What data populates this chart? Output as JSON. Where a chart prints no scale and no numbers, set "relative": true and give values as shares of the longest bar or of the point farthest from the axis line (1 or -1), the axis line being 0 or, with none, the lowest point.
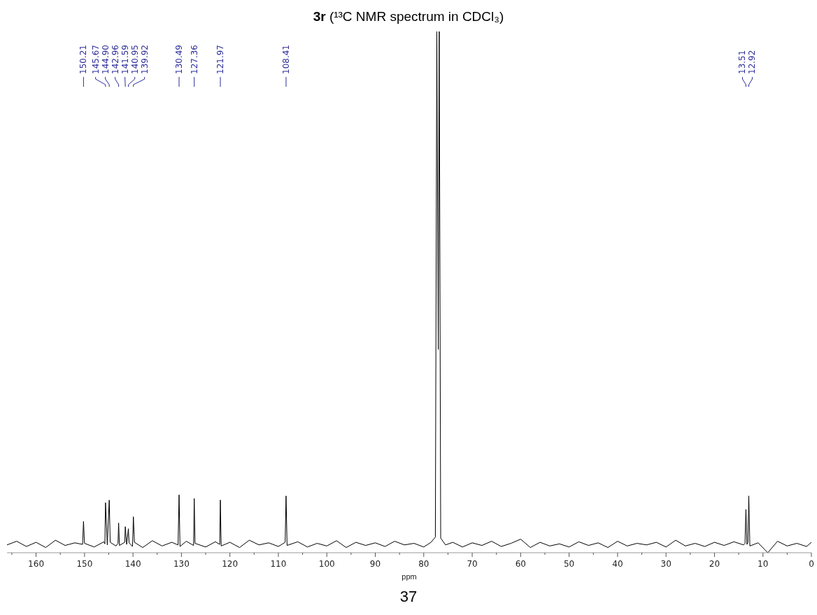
{
  "chart_data": {
    "type": "line",
    "relative": true,
    "title": "3r (¹³C NMR spectrum in CDCl₃)",
    "xlabel": "ppm",
    "marker": "none",
    "xlim": [
      166,
      0
    ],
    "xticks": [
      {
        "value": 165,
        "label": null
      },
      160,
      {
        "value": 155,
        "label": null
      },
      150,
      {
        "value": 145,
        "label": null
      },
      140,
      {
        "value": 135,
        "label": null
      },
      130,
      {
        "value": 125,
        "label": null
      },
      120,
      {
        "value": 115,
        "label": null
      },
      110,
      {
        "value": 105,
        "label": null
      },
      100,
      {
        "value": 95,
        "label": null
      },
      90,
      {
        "value": 85,
        "label": null
      },
      80,
      {
        "value": 75,
        "label": null
      },
      70,
      {
        "value": 65,
        "label": null
      },
      60,
      {
        "value": 55,
        "label": null
      },
      50,
      {
        "value": 45,
        "label": null
      },
      40,
      {
        "value": 35,
        "label": null
      },
      30,
      {
        "value": 25,
        "label": null
      },
      20,
      {
        "value": 15,
        "label": null
      },
      10,
      {
        "value": 5,
        "label": null
      },
      0
    ],
    "series": [
      {
        "color": "#000000",
        "x": [
          166,
          164,
          162,
          160,
          158,
          156,
          154,
          152,
          150.4,
          150.21,
          150.0,
          148,
          146,
          145.8,
          145.67,
          145.3,
          144.9,
          144.7,
          143.5,
          143.1,
          142.96,
          142.8,
          141.7,
          141.59,
          141.3,
          140.95,
          140.8,
          140.1,
          139.92,
          139.7,
          138,
          136,
          134,
          132,
          130.7,
          130.49,
          130.3,
          129,
          127.5,
          127.36,
          127.2,
          125,
          123,
          122.1,
          121.97,
          121.8,
          120,
          118,
          116,
          114,
          112,
          110,
          108.6,
          108.41,
          108.2,
          106,
          104,
          102,
          100,
          98,
          96,
          94,
          92,
          90,
          88,
          86,
          84,
          82,
          80,
          78.5,
          77.6,
          77.3,
          77.0,
          76.8,
          76.5,
          75.5,
          74,
          72,
          70,
          68,
          66,
          64,
          62,
          60,
          58,
          56,
          54,
          52,
          50,
          48,
          46,
          44,
          42,
          40,
          38,
          36,
          34,
          32,
          30,
          28,
          26,
          24,
          22,
          20,
          18,
          16,
          14,
          13.7,
          13.51,
          13.3,
          13.1,
          12.92,
          12.7,
          11,
          9,
          7,
          5,
          3,
          1,
          0
        ],
        "values": [
          0.015,
          0.022,
          0.012,
          0.02,
          0.01,
          0.024,
          0.014,
          0.019,
          0.016,
          0.06,
          0.018,
          0.011,
          0.021,
          0.017,
          0.096,
          0.015,
          0.101,
          0.02,
          0.013,
          0.018,
          0.057,
          0.014,
          0.02,
          0.05,
          0.016,
          0.046,
          0.019,
          0.012,
          0.069,
          0.02,
          0.01,
          0.023,
          0.013,
          0.02,
          0.015,
          0.111,
          0.012,
          0.022,
          0.014,
          0.104,
          0.018,
          0.011,
          0.021,
          0.016,
          0.101,
          0.013,
          0.02,
          0.01,
          0.024,
          0.015,
          0.019,
          0.012,
          0.02,
          0.109,
          0.014,
          0.021,
          0.011,
          0.018,
          0.013,
          0.023,
          0.01,
          0.02,
          0.014,
          0.019,
          0.012,
          0.022,
          0.015,
          0.018,
          0.011,
          0.02,
          0.03,
          1,
          0.39,
          1,
          0.028,
          0.015,
          0.02,
          0.011,
          0.019,
          0.014,
          0.022,
          0.012,
          0.018,
          0.026,
          0.01,
          0.02,
          0.013,
          0.017,
          0.011,
          0.021,
          0.014,
          0.019,
          0.01,
          0.022,
          0.013,
          0.018,
          0.015,
          0.02,
          0.011,
          0.024,
          0.013,
          0.018,
          0.012,
          0.02,
          0.014,
          0.021,
          0.015,
          0.018,
          0.083,
          0.016,
          0.02,
          0.109,
          0.013,
          0.019,
          0,
          0.022,
          0.013,
          0.018,
          0.012,
          0.02
        ]
      }
    ],
    "annotations": [
      {
        "text": "150.21",
        "x": 150.21
      },
      {
        "text": "145.67",
        "x": 145.67
      },
      {
        "text": "144.90",
        "x": 144.9
      },
      {
        "text": "142.96",
        "x": 142.96
      },
      {
        "text": "141.59",
        "x": 141.59
      },
      {
        "text": "140.95",
        "x": 140.95
      },
      {
        "text": "139.92",
        "x": 139.92
      },
      {
        "text": "130.49",
        "x": 130.49
      },
      {
        "text": "127.36",
        "x": 127.36
      },
      {
        "text": "121.97",
        "x": 121.97
      },
      {
        "text": "108.41",
        "x": 108.41
      },
      {
        "text": "13.51",
        "x": 13.51
      },
      {
        "text": "12.92",
        "x": 12.92
      },
      "37"
    ]
  }
}
